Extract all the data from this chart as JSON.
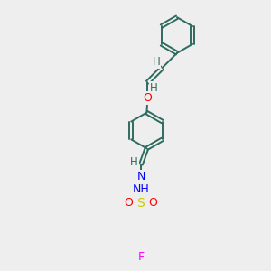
{
  "background_color": "#eeeeee",
  "bond_color": "#2d6b5e",
  "atom_colors": {
    "O": "#ff0000",
    "N": "#0000ff",
    "S": "#cccc00",
    "F": "#ff00ff",
    "H": "#2d6b5e",
    "C": "#2d6b5e"
  },
  "bond_width": 1.4,
  "font_size": 8.5,
  "fig_width": 3.0,
  "fig_height": 3.0,
  "dpi": 100
}
